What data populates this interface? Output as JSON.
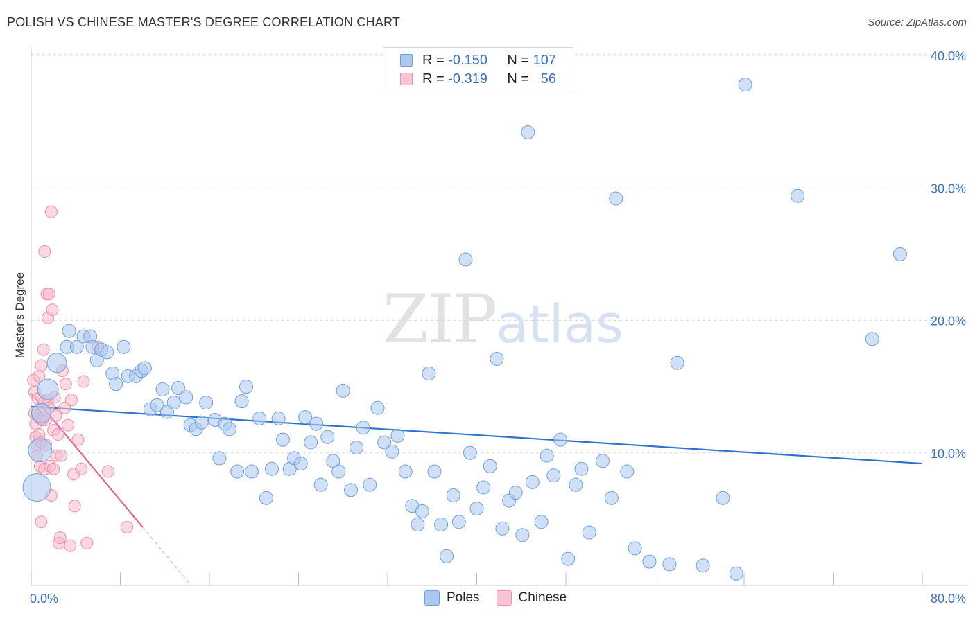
{
  "title": "POLISH VS CHINESE MASTER'S DEGREE CORRELATION CHART",
  "source": "Source: ZipAtlas.com",
  "watermark": {
    "zip": "ZIP",
    "atlas": "atlas"
  },
  "legend": {
    "rows": [
      {
        "r_label": "R =",
        "r_value": "-0.150",
        "n_label": "N =",
        "n_value": "107"
      },
      {
        "r_label": "R =",
        "r_value": "-0.319",
        "n_label": "N =",
        "n_value": "56"
      }
    ]
  },
  "bottom_legend": {
    "poles": "Poles",
    "chinese": "Chinese"
  },
  "colors": {
    "poles_fill": "#aac8f0",
    "poles_stroke": "#6f9fde",
    "poles_line": "#2f72cc",
    "chinese_fill": "#f7b9cc",
    "chinese_stroke": "#ee8fad",
    "chinese_line": "#e0628e",
    "grid": "#d9d9d9",
    "axis_text": "#3a72c4"
  },
  "chart_data": {
    "type": "scatter",
    "title": "POLISH VS CHINESE MASTER'S DEGREE CORRELATION CHART",
    "xlabel": "",
    "ylabel": "Master's Degree",
    "xlim": [
      0,
      80
    ],
    "ylim": [
      0,
      40
    ],
    "x_tick_labels": [
      "0.0%",
      "80.0%"
    ],
    "y_tick_labels": [
      "10.0%",
      "20.0%",
      "30.0%",
      "40.0%"
    ],
    "y_ticks": [
      10,
      20,
      30,
      40
    ],
    "grid": true,
    "series": [
      {
        "name": "Poles",
        "trend": {
          "x": [
            0,
            80
          ],
          "y": [
            13.5,
            9.2
          ]
        },
        "points": [
          [
            0.8,
            10.2
          ],
          [
            0.9,
            13.0
          ],
          [
            0.5,
            7.4
          ],
          [
            1.5,
            14.8
          ],
          [
            2.3,
            16.8
          ],
          [
            3.2,
            18.0
          ],
          [
            3.4,
            19.2
          ],
          [
            4.1,
            18.0
          ],
          [
            4.7,
            18.8
          ],
          [
            5.3,
            18.8
          ],
          [
            5.5,
            18.0
          ],
          [
            5.9,
            17.0
          ],
          [
            6.3,
            17.8
          ],
          [
            6.8,
            17.6
          ],
          [
            7.3,
            16.0
          ],
          [
            7.6,
            15.2
          ],
          [
            8.3,
            18.0
          ],
          [
            8.7,
            15.8
          ],
          [
            9.4,
            15.8
          ],
          [
            9.9,
            16.2
          ],
          [
            10.2,
            16.4
          ],
          [
            10.7,
            13.3
          ],
          [
            11.3,
            13.6
          ],
          [
            11.8,
            14.8
          ],
          [
            12.2,
            13.1
          ],
          [
            12.8,
            13.8
          ],
          [
            13.2,
            14.9
          ],
          [
            13.9,
            14.2
          ],
          [
            14.3,
            12.1
          ],
          [
            14.8,
            11.8
          ],
          [
            15.3,
            12.3
          ],
          [
            15.7,
            13.8
          ],
          [
            16.5,
            12.5
          ],
          [
            16.9,
            9.6
          ],
          [
            17.4,
            12.2
          ],
          [
            17.8,
            11.8
          ],
          [
            18.5,
            8.6
          ],
          [
            18.9,
            13.9
          ],
          [
            19.3,
            15.0
          ],
          [
            19.8,
            8.6
          ],
          [
            20.5,
            12.6
          ],
          [
            21.1,
            6.6
          ],
          [
            21.6,
            8.8
          ],
          [
            22.2,
            12.6
          ],
          [
            22.6,
            11.0
          ],
          [
            23.2,
            8.8
          ],
          [
            23.6,
            9.6
          ],
          [
            24.2,
            9.2
          ],
          [
            24.6,
            12.7
          ],
          [
            25.1,
            10.8
          ],
          [
            25.6,
            12.2
          ],
          [
            26.0,
            7.6
          ],
          [
            26.6,
            11.2
          ],
          [
            27.1,
            9.4
          ],
          [
            27.6,
            8.6
          ],
          [
            28.0,
            14.7
          ],
          [
            28.7,
            7.2
          ],
          [
            29.2,
            10.4
          ],
          [
            29.8,
            11.9
          ],
          [
            30.4,
            7.6
          ],
          [
            31.1,
            13.4
          ],
          [
            31.7,
            10.8
          ],
          [
            32.4,
            10.1
          ],
          [
            32.9,
            11.3
          ],
          [
            33.6,
            8.6
          ],
          [
            34.2,
            6.0
          ],
          [
            34.7,
            4.6
          ],
          [
            35.1,
            5.6
          ],
          [
            35.7,
            16.0
          ],
          [
            36.2,
            8.6
          ],
          [
            36.8,
            4.6
          ],
          [
            37.3,
            2.2
          ],
          [
            37.9,
            6.8
          ],
          [
            38.4,
            4.8
          ],
          [
            39.0,
            24.6
          ],
          [
            39.4,
            10.0
          ],
          [
            40.0,
            5.8
          ],
          [
            40.6,
            7.4
          ],
          [
            41.2,
            9.0
          ],
          [
            41.8,
            17.1
          ],
          [
            42.3,
            4.3
          ],
          [
            42.9,
            6.4
          ],
          [
            43.5,
            7.0
          ],
          [
            44.1,
            3.8
          ],
          [
            44.6,
            34.2
          ],
          [
            45.0,
            7.8
          ],
          [
            45.8,
            4.8
          ],
          [
            46.3,
            9.8
          ],
          [
            46.9,
            8.3
          ],
          [
            47.5,
            11.0
          ],
          [
            48.2,
            2.0
          ],
          [
            48.9,
            7.6
          ],
          [
            49.4,
            8.8
          ],
          [
            50.1,
            4.0
          ],
          [
            51.3,
            9.4
          ],
          [
            52.1,
            6.6
          ],
          [
            52.5,
            29.2
          ],
          [
            53.5,
            8.6
          ],
          [
            54.2,
            2.8
          ],
          [
            55.5,
            1.8
          ],
          [
            57.3,
            1.6
          ],
          [
            58.0,
            16.8
          ],
          [
            60.3,
            1.5
          ],
          [
            62.1,
            6.6
          ],
          [
            63.3,
            0.9
          ],
          [
            64.1,
            37.8
          ],
          [
            68.8,
            29.4
          ],
          [
            75.5,
            18.6
          ],
          [
            78.0,
            25.0
          ]
        ]
      },
      {
        "name": "Chinese",
        "trend": {
          "x": [
            0,
            10
          ],
          "y": [
            14.5,
            4.4
          ]
        },
        "points": [
          [
            0.2,
            15.5
          ],
          [
            0.3,
            14.6
          ],
          [
            0.3,
            13.0
          ],
          [
            0.4,
            12.2
          ],
          [
            0.4,
            11.2
          ],
          [
            0.5,
            10.6
          ],
          [
            0.5,
            9.8
          ],
          [
            0.6,
            12.8
          ],
          [
            0.6,
            14.1
          ],
          [
            0.7,
            15.8
          ],
          [
            0.7,
            11.4
          ],
          [
            0.8,
            12.6
          ],
          [
            0.8,
            9.0
          ],
          [
            0.9,
            10.8
          ],
          [
            0.9,
            16.6
          ],
          [
            1.0,
            12.5
          ],
          [
            1.1,
            13.8
          ],
          [
            1.1,
            17.8
          ],
          [
            1.2,
            8.8
          ],
          [
            1.2,
            25.2
          ],
          [
            1.3,
            12.5
          ],
          [
            1.3,
            10.6
          ],
          [
            1.4,
            22.0
          ],
          [
            1.5,
            14.0
          ],
          [
            1.5,
            20.2
          ],
          [
            1.6,
            13.4
          ],
          [
            1.6,
            22.0
          ],
          [
            1.7,
            9.0
          ],
          [
            1.8,
            28.2
          ],
          [
            1.8,
            6.8
          ],
          [
            1.9,
            20.8
          ],
          [
            2.0,
            8.8
          ],
          [
            2.0,
            11.7
          ],
          [
            2.1,
            14.2
          ],
          [
            2.2,
            12.8
          ],
          [
            2.3,
            9.8
          ],
          [
            2.4,
            11.4
          ],
          [
            2.5,
            3.2
          ],
          [
            2.6,
            3.6
          ],
          [
            2.7,
            9.8
          ],
          [
            2.8,
            16.2
          ],
          [
            3.0,
            13.4
          ],
          [
            3.1,
            15.2
          ],
          [
            3.3,
            12.1
          ],
          [
            3.5,
            3.0
          ],
          [
            3.6,
            14.0
          ],
          [
            3.8,
            8.4
          ],
          [
            3.9,
            6.0
          ],
          [
            4.2,
            11.0
          ],
          [
            4.5,
            8.8
          ],
          [
            4.7,
            15.4
          ],
          [
            5.0,
            3.2
          ],
          [
            6.0,
            18.0
          ],
          [
            6.9,
            8.6
          ],
          [
            8.6,
            4.4
          ],
          [
            0.9,
            4.8
          ]
        ]
      }
    ]
  }
}
